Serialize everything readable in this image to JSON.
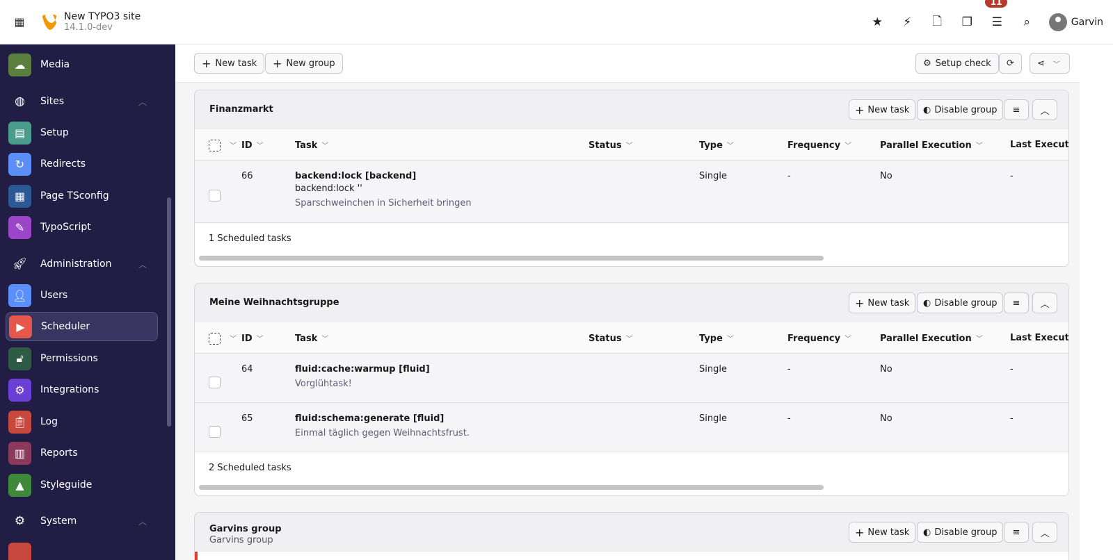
{
  "header": {
    "site_title": "New TYPO3 site",
    "version": "14.1.0-dev",
    "notifications_count": "11",
    "user": "Garvin",
    "tools": [
      "star-icon",
      "bolt-icon",
      "file-icon",
      "copy-icon",
      "list-icon",
      "search-icon"
    ]
  },
  "sidebar": {
    "items": [
      {
        "label": "Media",
        "color": "#5b7f3e",
        "icon": "cloud-icon",
        "type": "module"
      },
      {
        "label": "Sites",
        "icon": "globe-icon",
        "type": "section"
      },
      {
        "label": "Setup",
        "color": "#4a9c8c",
        "icon": "layout-icon",
        "type": "module"
      },
      {
        "label": "Redirects",
        "color": "#5b8ff5",
        "icon": "redirect-icon",
        "type": "module"
      },
      {
        "label": "Page TSconfig",
        "color": "#2d5896",
        "icon": "config-icon",
        "type": "module"
      },
      {
        "label": "TypoScript",
        "color": "#9b45c9",
        "icon": "typoscript-icon",
        "type": "module"
      },
      {
        "label": "Administration",
        "icon": "rocket-icon",
        "type": "section"
      },
      {
        "label": "Users",
        "color": "#5b8ff9",
        "icon": "user-icon",
        "type": "module"
      },
      {
        "label": "Scheduler",
        "color": "#e5574b",
        "icon": "scheduler-icon",
        "type": "module",
        "active": true
      },
      {
        "label": "Permissions",
        "color": "#2e5b46",
        "icon": "lock-icon",
        "type": "module"
      },
      {
        "label": "Integrations",
        "color": "#6a3fd6",
        "icon": "webhook-icon",
        "type": "module"
      },
      {
        "label": "Log",
        "color": "#c8483e",
        "icon": "clipboard-icon",
        "type": "module"
      },
      {
        "label": "Reports",
        "color": "#8b3a5c",
        "icon": "report-icon",
        "type": "module"
      },
      {
        "label": "Styleguide",
        "color": "#3f8a3a",
        "icon": "tree-icon",
        "type": "module"
      },
      {
        "label": "System",
        "icon": "gear-icon",
        "type": "section"
      }
    ]
  },
  "toolbar": {
    "new_task": "New task",
    "new_group": "New group",
    "setup_check": "Setup check"
  },
  "group_buttons": {
    "new_task": "New task",
    "disable_group": "Disable group"
  },
  "columns": [
    "ID",
    "Task",
    "Status",
    "Type",
    "Frequency",
    "Parallel Execution",
    "Last Executi"
  ],
  "groups": [
    {
      "title": "Finanzmarkt",
      "accent": "#6c4fc4",
      "footer": "1 Scheduled tasks",
      "tasks": [
        {
          "id": "66",
          "name": "backend:lock [backend]",
          "sub": "backend:lock ''",
          "desc": "Sparschweinchen in Sicherheit bringen",
          "status": "",
          "type": "Single",
          "frequency": "-",
          "parallel": "No",
          "last": "-"
        }
      ]
    },
    {
      "title": "Meine Weihnachtsgruppe",
      "accent": "#f0952e",
      "footer": "2 Scheduled tasks",
      "tasks": [
        {
          "id": "64",
          "name": "fluid:cache:warmup [fluid]",
          "desc": "Vorglühtask!",
          "status": "",
          "type": "Single",
          "frequency": "-",
          "parallel": "No",
          "last": "-"
        },
        {
          "id": "65",
          "name": "fluid:schema:generate [fluid]",
          "desc": "Einmal täglich gegen Weihnachtsfrust.",
          "status": "",
          "type": "Single",
          "frequency": "-",
          "parallel": "No",
          "last": "-"
        }
      ]
    },
    {
      "title": "Garvins group",
      "subtitle": "Garvins group",
      "accent": "#e53a2e"
    }
  ]
}
